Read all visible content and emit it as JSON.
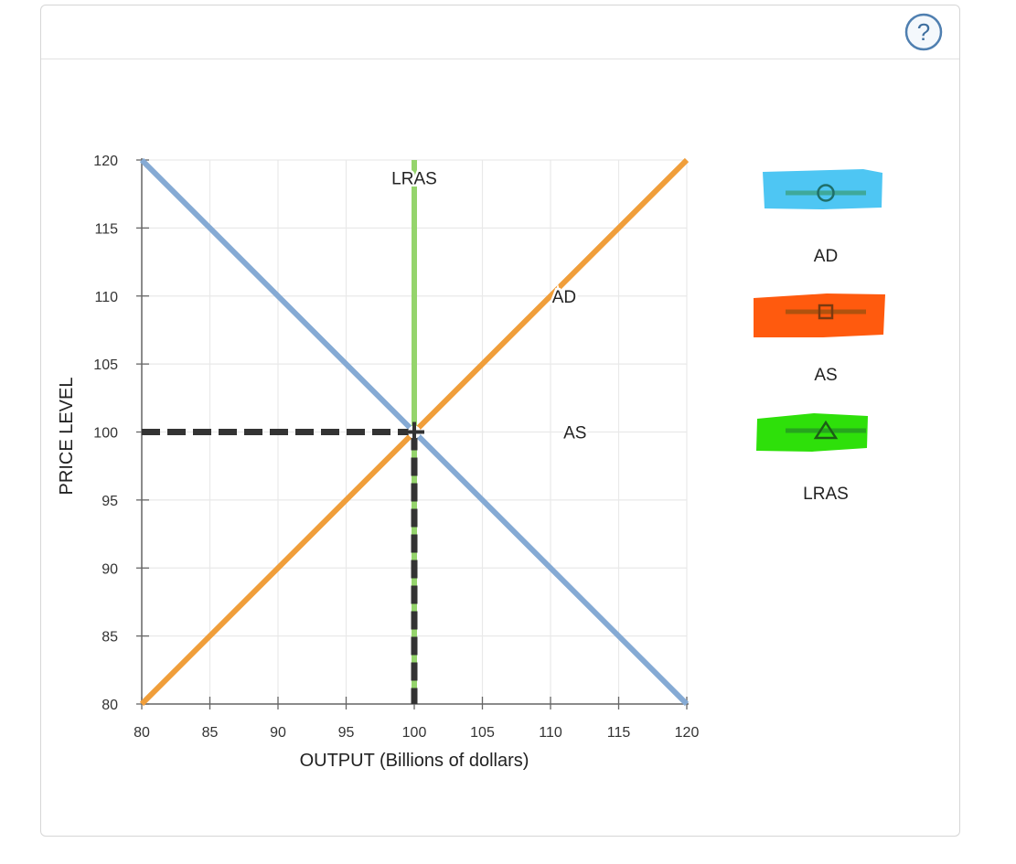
{
  "help": {
    "icon": "question-mark-icon",
    "glyph": "?"
  },
  "chart_data": {
    "type": "line",
    "xlabel": "OUTPUT (Billions of dollars)",
    "ylabel": "PRICE LEVEL",
    "xlim": [
      80,
      120
    ],
    "ylim": [
      80,
      120
    ],
    "xticks": [
      80,
      85,
      90,
      95,
      100,
      105,
      110,
      115,
      120
    ],
    "yticks": [
      80,
      85,
      90,
      95,
      100,
      105,
      110,
      115,
      120
    ],
    "grid": true,
    "series": [
      {
        "name": "AD",
        "color": "#85aad4",
        "points": [
          [
            80,
            120
          ],
          [
            120,
            80
          ]
        ],
        "label_at": [
          111,
          110
        ]
      },
      {
        "name": "AS",
        "color": "#f09e3a",
        "points": [
          [
            80,
            80
          ],
          [
            120,
            120
          ]
        ],
        "label_at": [
          111.8,
          100
        ]
      },
      {
        "name": "LRAS",
        "color": "#95d46c",
        "points": [
          [
            100,
            80
          ],
          [
            100,
            120
          ]
        ],
        "label_at": [
          100,
          118.7
        ]
      }
    ],
    "equilibrium": {
      "x": 100,
      "y": 100,
      "guide_color": "#333333"
    }
  },
  "legend": {
    "items": [
      {
        "label": "AD",
        "marker": "circle-marker-icon",
        "highlight": "#4ec6f3",
        "line": "#3fa89a"
      },
      {
        "label": "AS",
        "marker": "square-marker-icon",
        "highlight": "#ff5a0e",
        "line": "#b0520e"
      },
      {
        "label": "LRAS",
        "marker": "triangle-marker-icon",
        "highlight": "#2ee00a",
        "line": "#26a51d"
      }
    ]
  }
}
